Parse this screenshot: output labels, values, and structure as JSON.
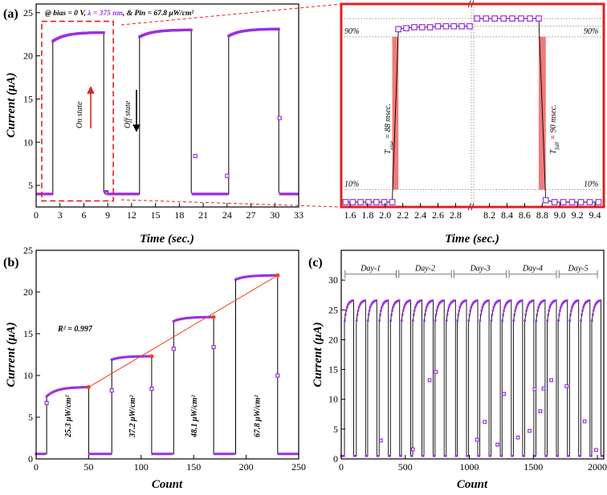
{
  "chart_data": [
    {
      "id": "a_left",
      "type": "line",
      "panel_label": "(a)",
      "xlabel": "Time (sec.)",
      "ylabel": "Current (μA)",
      "xlim": [
        0,
        33
      ],
      "ylim": [
        2.5,
        26
      ],
      "xticks": [
        0,
        3,
        6,
        9,
        12,
        15,
        18,
        21,
        24,
        27,
        30,
        33
      ],
      "yticks": [
        5,
        10,
        15,
        20,
        25
      ],
      "conditions": {
        "prefix": "@ bias = 0 V, ",
        "wavelength": "λ = 375 nm",
        "suffix": ", & Pin = 67.8 μW/cm²"
      },
      "on_state_label": "On state",
      "off_state_label": "Off state",
      "colors": {
        "marker": "#9b30e0",
        "line": "#000000",
        "on_arrow": "#e02020",
        "off_arrow": "#000000",
        "highlight": "#e02020"
      },
      "off_level": 4.0,
      "cycles": [
        {
          "start": 2.1,
          "end": 8.5,
          "on_first": 21.7,
          "on_last": 22.7,
          "off_dip": 4.3
        },
        {
          "start": 13.0,
          "end": 19.5,
          "on_first": 22.2,
          "on_last": 23.0,
          "off_dip": 4.2
        },
        {
          "start": 24.2,
          "end": 30.5,
          "on_first": 22.3,
          "on_last": 23.1,
          "off_dip": 4.2
        }
      ],
      "transition_points": [
        {
          "x": 20.0,
          "y": 8.4
        },
        {
          "x": 24.0,
          "y": 6.1
        },
        {
          "x": 30.6,
          "y": 12.8
        }
      ],
      "zoom_box": {
        "x": [
          0.7,
          9.7
        ],
        "y": [
          3.2,
          24.0
        ]
      }
    },
    {
      "id": "a_right",
      "type": "scatter",
      "xlabel": "Time (sec.)",
      "xticks_left": [
        1.6,
        1.8,
        2.0,
        2.2,
        2.4,
        2.6,
        2.8
      ],
      "xticks_right": [
        8.2,
        8.4,
        8.6,
        8.8,
        9.0,
        9.2,
        9.4
      ],
      "xlim_left": [
        1.5,
        2.97
      ],
      "xlim_right": [
        8.03,
        9.5
      ],
      "ylim": [
        3.4,
        24.4
      ],
      "break_mark": "//",
      "levels": {
        "low": 3.9,
        "p10": 5.2,
        "p90": 21.0,
        "left_high": 22.1,
        "right_high": 22.9
      },
      "rise_points": [
        {
          "x": 1.55,
          "y": 3.9
        },
        {
          "x": 1.63,
          "y": 3.9
        },
        {
          "x": 1.72,
          "y": 3.9
        },
        {
          "x": 1.81,
          "y": 3.9
        },
        {
          "x": 1.9,
          "y": 3.9
        },
        {
          "x": 1.99,
          "y": 3.9
        },
        {
          "x": 2.08,
          "y": 3.9
        },
        {
          "x": 2.15,
          "y": 21.8
        },
        {
          "x": 2.24,
          "y": 21.9
        },
        {
          "x": 2.33,
          "y": 22.0
        },
        {
          "x": 2.42,
          "y": 22.0
        },
        {
          "x": 2.51,
          "y": 22.0
        },
        {
          "x": 2.6,
          "y": 22.1
        },
        {
          "x": 2.69,
          "y": 22.1
        },
        {
          "x": 2.78,
          "y": 22.1
        },
        {
          "x": 2.87,
          "y": 22.1
        },
        {
          "x": 2.96,
          "y": 22.1
        }
      ],
      "fall_points": [
        {
          "x": 8.06,
          "y": 22.9
        },
        {
          "x": 8.16,
          "y": 22.9
        },
        {
          "x": 8.26,
          "y": 22.9
        },
        {
          "x": 8.36,
          "y": 22.9
        },
        {
          "x": 8.46,
          "y": 22.9
        },
        {
          "x": 8.56,
          "y": 22.9
        },
        {
          "x": 8.66,
          "y": 22.9
        },
        {
          "x": 8.76,
          "y": 22.9
        },
        {
          "x": 8.84,
          "y": 4.1
        },
        {
          "x": 8.94,
          "y": 3.9
        },
        {
          "x": 9.04,
          "y": 3.9
        },
        {
          "x": 9.14,
          "y": 3.9
        },
        {
          "x": 9.24,
          "y": 3.9
        },
        {
          "x": 9.34,
          "y": 3.9
        },
        {
          "x": 9.44,
          "y": 3.9
        }
      ],
      "rise_band": {
        "x": [
          2.08,
          2.15
        ]
      },
      "fall_band": {
        "x": [
          8.76,
          8.84
        ]
      },
      "labels": {
        "pct90": "90%",
        "pct10": "10%",
        "rise_sub": "rise",
        "rise_value": " = 88 msec.",
        "fall_sub": "fall",
        "fall_value": " = 90 msec."
      }
    },
    {
      "id": "b",
      "type": "line",
      "panel_label": "(b)",
      "xlabel": "Count",
      "ylabel": "Current (μA)",
      "xlim": [
        0,
        250
      ],
      "ylim": [
        0,
        25
      ],
      "xticks": [
        0,
        50,
        100,
        150,
        200,
        250
      ],
      "yticks": [
        0,
        5,
        10,
        15,
        20,
        25
      ],
      "off_level": 0.6,
      "r_squared": "R² = 0.997",
      "fit_line": {
        "x": [
          50,
          230
        ],
        "y": [
          8.6,
          22.0
        ]
      },
      "steps": [
        {
          "start": 10,
          "end": 50,
          "on_first": 7.5,
          "on_last": 8.6,
          "label": "25.3 μW/cm²"
        },
        {
          "start": 72,
          "end": 110,
          "on_first": 11.9,
          "on_last": 12.3,
          "label": "37.2 μW/cm²"
        },
        {
          "start": 131,
          "end": 169,
          "on_first": 16.5,
          "on_last": 17.0,
          "label": "48.1 μW/cm²"
        },
        {
          "start": 190,
          "end": 230,
          "on_first": 21.5,
          "on_last": 22.0,
          "label": "67.8 μW/cm²"
        }
      ],
      "transition_points": [
        {
          "x": 10,
          "y": 6.7
        },
        {
          "x": 72,
          "y": 8.2
        },
        {
          "x": 110,
          "y": 8.4
        },
        {
          "x": 131,
          "y": 13.2
        },
        {
          "x": 169,
          "y": 13.4
        },
        {
          "x": 230,
          "y": 10.0
        }
      ],
      "fit_points": [
        {
          "x": 50,
          "y": 8.6
        },
        {
          "x": 110,
          "y": 12.3
        },
        {
          "x": 169,
          "y": 17.0
        },
        {
          "x": 230,
          "y": 22.0
        }
      ]
    },
    {
      "id": "c",
      "type": "line",
      "panel_label": "(c)",
      "xlabel": "Count",
      "ylabel": "Current (μA)",
      "xlim": [
        0,
        2050
      ],
      "ylim": [
        0,
        35
      ],
      "xticks": [
        0,
        500,
        1000,
        1500,
        2000
      ],
      "yticks": [
        0,
        5,
        10,
        15,
        20,
        25,
        30
      ],
      "off_level": 0.5,
      "days": [
        {
          "label": "Day-1",
          "x": [
            30,
            430
          ]
        },
        {
          "label": "Day-2",
          "x": [
            450,
            860
          ]
        },
        {
          "label": "Day-3",
          "x": [
            880,
            1290
          ]
        },
        {
          "label": "Day-4",
          "x": [
            1310,
            1680
          ]
        },
        {
          "label": "Day-5",
          "x": [
            1700,
            2000
          ]
        }
      ],
      "cycle_starts": [
        25,
        118,
        206,
        296,
        384,
        470,
        558,
        646,
        732,
        820,
        906,
        994,
        1082,
        1170,
        1256,
        1344,
        1432,
        1520,
        1608,
        1694,
        1782,
        1870,
        1956
      ],
      "cycle_width": 72,
      "on_first": 22.8,
      "on_last": 26.6,
      "transition_points": [
        {
          "x": 310,
          "y": 3.1
        },
        {
          "x": 690,
          "y": 13.2
        },
        {
          "x": 740,
          "y": 14.6
        },
        {
          "x": 560,
          "y": 1.6
        },
        {
          "x": 1060,
          "y": 3.2
        },
        {
          "x": 1120,
          "y": 6.2
        },
        {
          "x": 1220,
          "y": 2.4
        },
        {
          "x": 1270,
          "y": 10.9
        },
        {
          "x": 1380,
          "y": 3.6
        },
        {
          "x": 1470,
          "y": 4.7
        },
        {
          "x": 1510,
          "y": 11.7
        },
        {
          "x": 1555,
          "y": 8.0
        },
        {
          "x": 1580,
          "y": 11.8
        },
        {
          "x": 1640,
          "y": 13.2
        },
        {
          "x": 1760,
          "y": 12.2
        },
        {
          "x": 1900,
          "y": 6.3
        },
        {
          "x": 1990,
          "y": 1.5
        }
      ]
    }
  ]
}
